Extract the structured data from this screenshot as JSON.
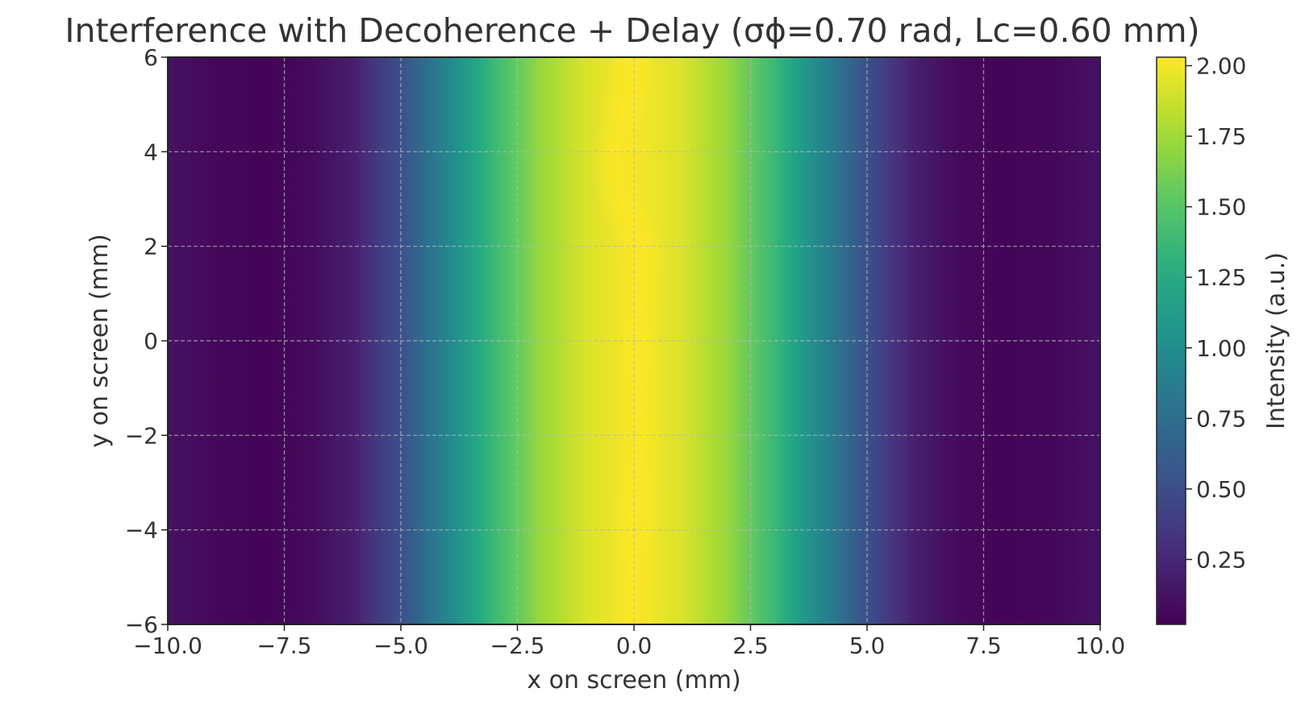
{
  "chart_data": {
    "type": "heatmap",
    "title": "Interference with Decoherence + Delay (σϕ=0.70 rad, Lc=0.60 mm)",
    "xlabel": "x on screen (mm)",
    "ylabel": "y on screen (mm)",
    "colorbar_label": "Intensity (a.u.)",
    "colormap": "viridis",
    "xlim": [
      -10,
      10
    ],
    "ylim": [
      -6,
      6
    ],
    "clim": [
      0.02,
      2.03
    ],
    "x_ticks": [
      -10,
      -7.5,
      -5,
      -2.5,
      0,
      2.5,
      5,
      7.5,
      10
    ],
    "x_tick_labels": [
      "−10.0",
      "−7.5",
      "−5.0",
      "−2.5",
      "0.0",
      "2.5",
      "5.0",
      "7.5",
      "10.0"
    ],
    "y_ticks": [
      -6,
      -4,
      -2,
      0,
      2,
      4,
      6
    ],
    "y_tick_labels": [
      "−6",
      "−4",
      "−2",
      "0",
      "2",
      "4",
      "6"
    ],
    "colorbar_ticks": [
      0.25,
      0.5,
      0.75,
      1.0,
      1.25,
      1.5,
      1.75,
      2.0
    ],
    "colorbar_tick_labels": [
      "0.25",
      "0.50",
      "0.75",
      "1.00",
      "1.25",
      "1.50",
      "1.75",
      "2.00"
    ],
    "grid": true,
    "grid_style": "dashed",
    "intensity_profile_x": {
      "x": [
        -10,
        -9,
        -8,
        -7,
        -6,
        -5,
        -4,
        -3,
        -2,
        -1,
        0,
        1,
        2,
        3,
        4,
        5,
        6,
        7,
        8,
        9,
        10
      ],
      "values": [
        0.12,
        0.06,
        0.04,
        0.07,
        0.2,
        0.52,
        0.95,
        1.38,
        1.72,
        1.93,
        2.01,
        1.93,
        1.72,
        1.38,
        0.95,
        0.52,
        0.2,
        0.07,
        0.04,
        0.06,
        0.12
      ]
    },
    "peak_center_x_vs_y": {
      "y": [
        -6,
        -4,
        -2,
        0,
        2,
        3,
        4,
        6
      ],
      "x_center": [
        0.0,
        0.05,
        0.15,
        0.1,
        0.2,
        -0.3,
        -0.4,
        0.0
      ]
    }
  }
}
